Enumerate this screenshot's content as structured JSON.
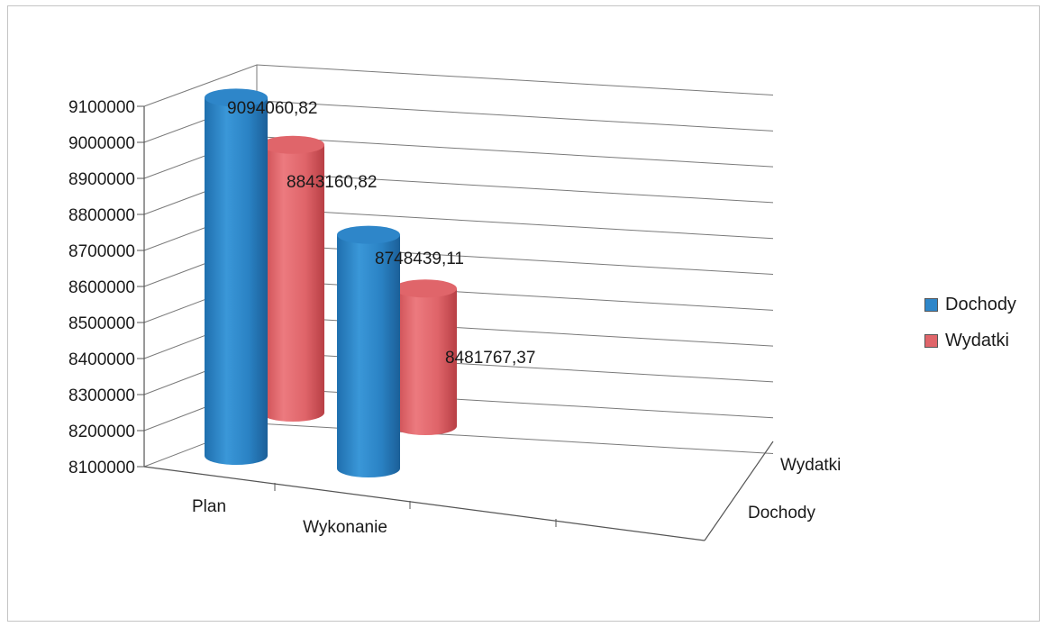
{
  "colors": {
    "Dochody": "#2e86c9",
    "Wydatki": "#e0656a",
    "grid": "#7a7a7a"
  },
  "chart_data": {
    "type": "bar",
    "style": "3d-cylinder",
    "title": "",
    "xlabel": "",
    "ylabel": "",
    "categories": [
      "Plan",
      "Wykonanie"
    ],
    "depth_categories": [
      "Dochody",
      "Wydatki"
    ],
    "ylim": [
      8100000,
      9100000
    ],
    "yticks": [
      "8100000",
      "8200000",
      "8300000",
      "8400000",
      "8500000",
      "8600000",
      "8700000",
      "8800000",
      "8900000",
      "9000000",
      "9100000"
    ],
    "series": [
      {
        "name": "Dochody",
        "values": [
          9094060.82,
          8748439.11
        ],
        "labels": [
          "9094060,82",
          "8748439,11"
        ]
      },
      {
        "name": "Wydatki",
        "values": [
          8843160.82,
          8481767.37
        ],
        "labels": [
          "8843160,82",
          "8481767,37"
        ]
      }
    ],
    "grid": true,
    "legend_position": "right"
  }
}
